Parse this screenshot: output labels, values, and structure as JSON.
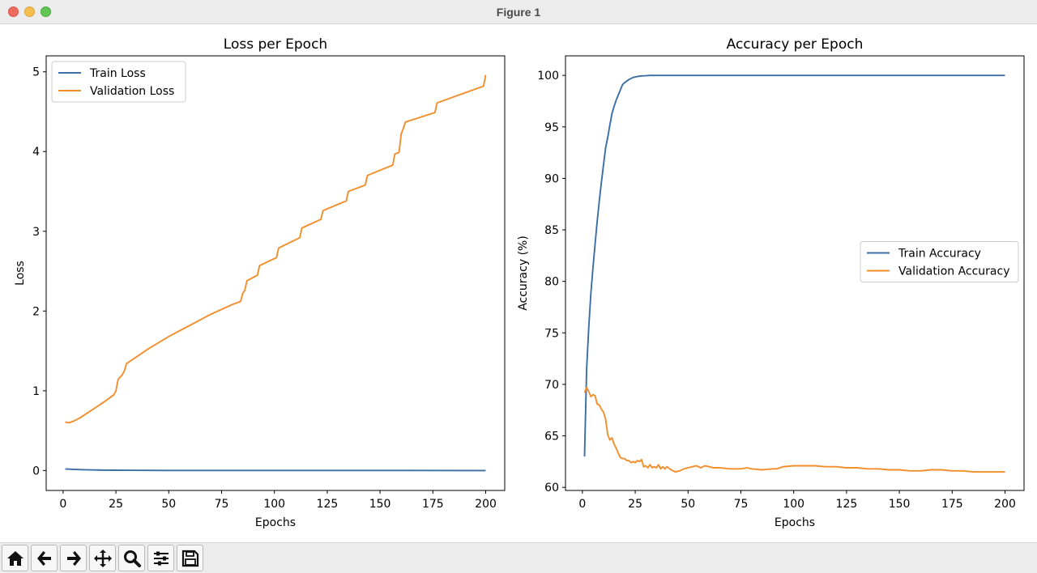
{
  "window": {
    "title": "Figure 1"
  },
  "toolbar": {
    "buttons": [
      {
        "icon": "home-icon"
      },
      {
        "icon": "back-arrow-icon"
      },
      {
        "icon": "forward-arrow-icon"
      },
      {
        "icon": "pan-icon"
      },
      {
        "icon": "zoom-icon"
      },
      {
        "icon": "configure-subplots-icon"
      },
      {
        "icon": "save-icon"
      }
    ]
  },
  "colors": {
    "train": "#3a6ea5",
    "validation": "#f28e2b"
  },
  "chart_data": [
    {
      "type": "line",
      "title": "Loss per Epoch",
      "xlabel": "Epochs",
      "ylabel": "Loss",
      "xlim": [
        -8,
        209
      ],
      "ylim": [
        -0.25,
        5.2
      ],
      "xticks": [
        0,
        25,
        50,
        75,
        100,
        125,
        150,
        175,
        200
      ],
      "yticks": [
        0,
        1,
        2,
        3,
        4,
        5
      ],
      "legend": "upper-left",
      "series": [
        {
          "name": "Train Loss",
          "x": [
            1,
            5,
            10,
            15,
            20,
            25,
            30,
            40,
            50,
            75,
            100,
            150,
            200
          ],
          "y": [
            0.02,
            0.015,
            0.01,
            0.007,
            0.005,
            0.004,
            0.003,
            0.002,
            0.001,
            0.001,
            0.0005,
            0.0002,
            0.0001
          ]
        },
        {
          "name": "Validation Loss",
          "x": [
            1,
            2,
            3,
            5,
            8,
            12,
            16,
            20,
            24,
            25,
            26,
            28,
            29,
            30,
            40,
            50,
            60,
            70,
            80,
            84,
            85,
            86,
            87,
            92,
            93,
            101,
            102,
            112,
            113,
            122,
            123,
            134,
            135,
            143,
            144,
            156,
            157,
            159,
            160,
            161,
            162,
            176,
            177,
            199,
            200
          ],
          "y": [
            0.61,
            0.6,
            0.6,
            0.62,
            0.66,
            0.73,
            0.8,
            0.87,
            0.95,
            1.0,
            1.14,
            1.2,
            1.25,
            1.34,
            1.52,
            1.68,
            1.82,
            1.96,
            2.08,
            2.12,
            2.22,
            2.26,
            2.38,
            2.45,
            2.57,
            2.67,
            2.79,
            2.92,
            3.04,
            3.15,
            3.26,
            3.38,
            3.5,
            3.58,
            3.7,
            3.83,
            3.97,
            3.99,
            4.22,
            4.29,
            4.37,
            4.49,
            4.61,
            4.82,
            4.96
          ]
        }
      ]
    },
    {
      "type": "line",
      "title": "Accuracy per Epoch",
      "xlabel": "Epochs",
      "ylabel": "Accuracy (%)",
      "xlim": [
        -8,
        209
      ],
      "ylim": [
        59.7,
        101.9
      ],
      "xticks": [
        0,
        25,
        50,
        75,
        100,
        125,
        150,
        175,
        200
      ],
      "yticks": [
        60,
        65,
        70,
        75,
        80,
        85,
        90,
        95,
        100
      ],
      "legend": "center-right",
      "series": [
        {
          "name": "Train Accuracy",
          "x": [
            1,
            2,
            3,
            4,
            5,
            6,
            7,
            8,
            9,
            10,
            11,
            12,
            13,
            14,
            15,
            16,
            17,
            18,
            19,
            20,
            22,
            24,
            26,
            28,
            30,
            32,
            35,
            40,
            50,
            100,
            150,
            200
          ],
          "y": [
            63.0,
            71.5,
            75.5,
            78.8,
            81.3,
            83.6,
            85.8,
            87.8,
            89.6,
            91.3,
            93.0,
            94.0,
            95.2,
            96.3,
            97.0,
            97.6,
            98.1,
            98.6,
            99.1,
            99.3,
            99.6,
            99.8,
            99.9,
            99.95,
            99.97,
            100.0,
            100.0,
            100.0,
            100.0,
            100.0,
            100.0,
            100.0
          ]
        },
        {
          "name": "Validation Accuracy",
          "x": [
            1,
            2,
            3,
            4,
            5,
            6,
            7,
            8,
            9,
            10,
            11,
            12,
            13,
            14,
            15,
            16,
            17,
            18,
            19,
            20,
            21,
            22,
            23,
            24,
            25,
            26,
            27,
            28,
            29,
            30,
            31,
            32,
            33,
            34,
            35,
            36,
            37,
            38,
            39,
            40,
            42,
            44,
            46,
            48,
            50,
            52,
            54,
            56,
            58,
            60,
            62,
            65,
            70,
            75,
            78,
            80,
            85,
            90,
            92,
            95,
            100,
            105,
            110,
            115,
            120,
            125,
            130,
            135,
            140,
            145,
            150,
            155,
            160,
            165,
            170,
            175,
            180,
            185,
            190,
            195,
            200
          ],
          "y": [
            69.2,
            69.7,
            69.3,
            68.8,
            69.0,
            68.9,
            68.1,
            68.0,
            67.6,
            67.3,
            66.6,
            65.1,
            64.6,
            64.8,
            64.2,
            63.8,
            63.3,
            62.9,
            62.8,
            62.8,
            62.6,
            62.6,
            62.4,
            62.5,
            62.4,
            62.6,
            62.5,
            62.7,
            62.0,
            62.1,
            61.9,
            62.2,
            61.9,
            62.0,
            61.9,
            62.2,
            61.8,
            62.0,
            61.8,
            62.0,
            61.7,
            61.5,
            61.6,
            61.8,
            61.9,
            62.0,
            62.1,
            61.9,
            62.1,
            62.0,
            61.9,
            61.9,
            61.8,
            61.8,
            61.9,
            61.8,
            61.7,
            61.8,
            61.8,
            62.0,
            62.1,
            62.1,
            62.1,
            62.0,
            62.0,
            61.9,
            61.9,
            61.8,
            61.8,
            61.7,
            61.7,
            61.6,
            61.6,
            61.7,
            61.7,
            61.6,
            61.6,
            61.5,
            61.5,
            61.5,
            61.5
          ]
        }
      ]
    }
  ]
}
